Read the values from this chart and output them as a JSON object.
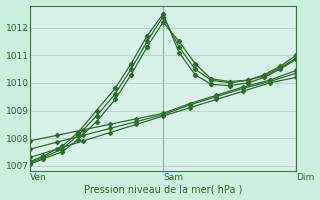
{
  "xlabel": "Pression niveau de la mer( hPa )",
  "background_color": "#cceedd",
  "plot_bg_color": "#d8f0e8",
  "grid_color": "#aacfbf",
  "line_color": "#2d6e2d",
  "ylim": [
    1006.8,
    1012.8
  ],
  "yticks": [
    1007,
    1008,
    1009,
    1010,
    1011,
    1012
  ],
  "xtick_labels": [
    "Ven",
    "Sam",
    "Dim"
  ],
  "vline_x": [
    0.0,
    0.5,
    1.0
  ],
  "lines_peak": [
    {
      "x": [
        0.0,
        0.05,
        0.12,
        0.18,
        0.25,
        0.32,
        0.38,
        0.44,
        0.5,
        0.56,
        0.62,
        0.68,
        0.75,
        0.82,
        0.88,
        0.94,
        1.0
      ],
      "y": [
        1007.1,
        1007.3,
        1007.6,
        1008.1,
        1008.8,
        1009.6,
        1010.5,
        1011.5,
        1012.4,
        1011.3,
        1010.5,
        1010.1,
        1010.0,
        1010.1,
        1010.3,
        1010.6,
        1011.0
      ]
    },
    {
      "x": [
        0.0,
        0.05,
        0.12,
        0.18,
        0.25,
        0.32,
        0.38,
        0.44,
        0.5,
        0.56,
        0.62,
        0.68,
        0.75,
        0.82,
        0.88,
        0.94,
        1.0
      ],
      "y": [
        1007.15,
        1007.35,
        1007.7,
        1008.2,
        1009.0,
        1009.8,
        1010.7,
        1011.7,
        1012.5,
        1011.1,
        1010.3,
        1009.95,
        1009.9,
        1010.0,
        1010.2,
        1010.5,
        1010.85
      ]
    },
    {
      "x": [
        0.0,
        0.05,
        0.12,
        0.18,
        0.25,
        0.32,
        0.38,
        0.44,
        0.5,
        0.56,
        0.62,
        0.68,
        0.75,
        0.82,
        0.88,
        0.94,
        1.0
      ],
      "y": [
        1007.05,
        1007.25,
        1007.5,
        1007.95,
        1008.6,
        1009.4,
        1010.3,
        1011.3,
        1012.2,
        1011.5,
        1010.7,
        1010.15,
        1010.05,
        1010.1,
        1010.25,
        1010.55,
        1010.9
      ]
    }
  ],
  "lines_flat": [
    {
      "x": [
        0.0,
        0.1,
        0.2,
        0.3,
        0.4,
        0.5,
        0.6,
        0.7,
        0.8,
        0.9,
        1.0
      ],
      "y": [
        1007.3,
        1007.6,
        1007.9,
        1008.2,
        1008.5,
        1008.8,
        1009.1,
        1009.4,
        1009.7,
        1010.0,
        1010.2
      ]
    },
    {
      "x": [
        0.0,
        0.1,
        0.2,
        0.3,
        0.4,
        0.5,
        0.6,
        0.7,
        0.8,
        0.9,
        1.0
      ],
      "y": [
        1007.6,
        1007.85,
        1008.1,
        1008.35,
        1008.6,
        1008.85,
        1009.2,
        1009.5,
        1009.8,
        1010.05,
        1010.35
      ]
    },
    {
      "x": [
        0.0,
        0.1,
        0.2,
        0.3,
        0.4,
        0.5,
        0.6,
        0.7,
        0.8,
        0.9,
        1.0
      ],
      "y": [
        1007.9,
        1008.1,
        1008.3,
        1008.5,
        1008.7,
        1008.9,
        1009.25,
        1009.55,
        1009.85,
        1010.1,
        1010.45
      ]
    }
  ]
}
